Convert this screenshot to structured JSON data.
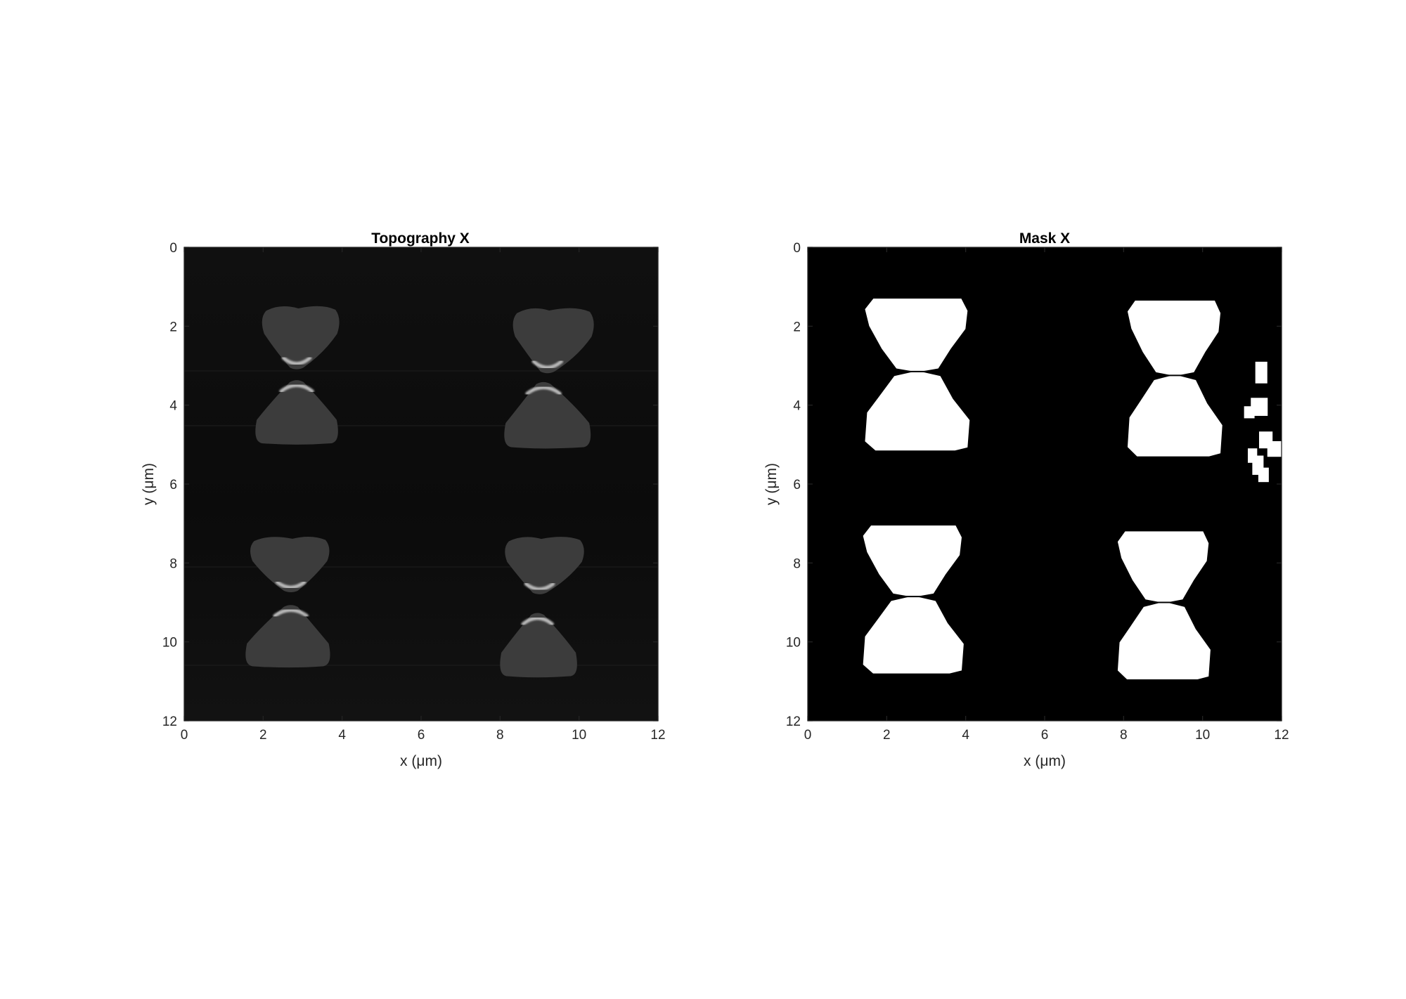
{
  "figure": {
    "colors": {
      "background": "#ffffff",
      "plot_background": "#0e0e0e",
      "mask_background": "#000000",
      "mask_foreground": "#ffffff",
      "topo_feature": "#3c3c3c",
      "topo_edge_highlight": "#cfcfcf",
      "axis": "#262626"
    }
  },
  "chart_data": [
    {
      "type": "heatmap",
      "title": "Topography X",
      "xlabel": "x (μm)",
      "ylabel": "y (μm)",
      "xlim": [
        0,
        12
      ],
      "ylim": [
        0,
        12
      ],
      "y_direction": "reversed (0 at top)",
      "xticks": [
        "0",
        "2",
        "4",
        "6",
        "8",
        "10",
        "12"
      ],
      "yticks": [
        "0",
        "2",
        "4",
        "6",
        "8",
        "10",
        "12"
      ],
      "colormap": "gray",
      "features": [
        {
          "x_center": 2.85,
          "y_center": 2.4,
          "shape": "upper triangle",
          "x_range": [
            1.9,
            4.0
          ],
          "y_range": [
            1.45,
            3.1
          ]
        },
        {
          "x_center": 2.85,
          "y_center": 4.4,
          "shape": "lower triangle",
          "x_range": [
            1.75,
            3.95
          ],
          "y_range": [
            3.35,
            5.0
          ]
        },
        {
          "x_center": 9.2,
          "y_center": 2.4,
          "shape": "upper triangle",
          "x_range": [
            8.25,
            10.45
          ],
          "y_range": [
            1.5,
            3.2
          ]
        },
        {
          "x_center": 9.1,
          "y_center": 4.4,
          "shape": "lower triangle",
          "x_range": [
            8.05,
            10.35
          ],
          "y_range": [
            3.4,
            5.1
          ]
        },
        {
          "x_center": 2.7,
          "y_center": 8.1,
          "shape": "upper triangle",
          "x_range": [
            1.6,
            3.75
          ],
          "y_range": [
            7.3,
            8.75
          ]
        },
        {
          "x_center": 2.7,
          "y_center": 10.0,
          "shape": "lower triangle",
          "x_range": [
            1.5,
            3.75
          ],
          "y_range": [
            9.05,
            10.65
          ]
        },
        {
          "x_center": 9.0,
          "y_center": 8.1,
          "shape": "upper triangle",
          "x_range": [
            8.05,
            10.2
          ],
          "y_range": [
            7.3,
            8.8
          ]
        },
        {
          "x_center": 8.95,
          "y_center": 10.0,
          "shape": "lower triangle",
          "x_range": [
            7.95,
            10.0
          ],
          "y_range": [
            9.25,
            10.9
          ]
        }
      ]
    },
    {
      "type": "heatmap",
      "title": "Mask X",
      "xlabel": "x (μm)",
      "ylabel": "y (μm)",
      "xlim": [
        0,
        12
      ],
      "ylim": [
        0,
        12
      ],
      "y_direction": "reversed (0 at top)",
      "xticks": [
        "0",
        "2",
        "4",
        "6",
        "8",
        "10",
        "12"
      ],
      "yticks": [
        "0",
        "2",
        "4",
        "6",
        "8",
        "10",
        "12"
      ],
      "colormap": "binary (white = 1, black = 0)",
      "regions": [
        {
          "x_range": [
            1.45,
            4.1
          ],
          "y_range": [
            1.3,
            5.15
          ],
          "shape": "bowtie"
        },
        {
          "x_range": [
            8.1,
            10.5
          ],
          "y_range": [
            1.35,
            5.3
          ],
          "shape": "bowtie"
        },
        {
          "x_range": [
            1.4,
            3.95
          ],
          "y_range": [
            7.05,
            10.8
          ],
          "shape": "bowtie"
        },
        {
          "x_range": [
            7.85,
            10.2
          ],
          "y_range": [
            7.2,
            10.95
          ],
          "shape": "bowtie"
        },
        {
          "x_range": [
            11.05,
            12.0
          ],
          "y_range": [
            2.9,
            5.95
          ],
          "shape": "scattered specks"
        }
      ]
    }
  ]
}
